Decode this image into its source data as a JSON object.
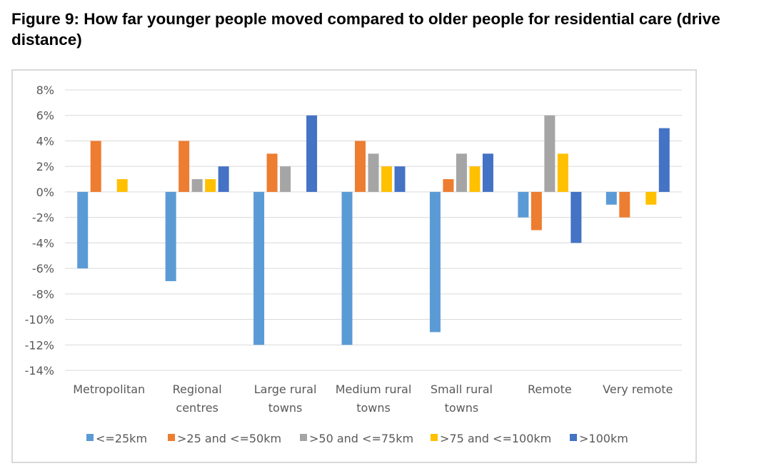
{
  "title": "Figure 9: How far younger people moved compared to older people for residential care (drive distance)",
  "chart_data": {
    "type": "bar",
    "categories": [
      [
        "Metropolitan"
      ],
      [
        "Regional",
        "centres"
      ],
      [
        "Large rural",
        "towns"
      ],
      [
        "Medium rural",
        "towns"
      ],
      [
        "Small rural",
        "towns"
      ],
      [
        "Remote"
      ],
      [
        "Very remote"
      ]
    ],
    "series": [
      {
        "name": "<=25km",
        "color": "#5b9bd5",
        "values": [
          -6,
          -7,
          -12,
          -12,
          -11,
          -2,
          -1
        ]
      },
      {
        "name": ">25 and <=50km",
        "color": "#ed7d31",
        "values": [
          4,
          4,
          3,
          4,
          1,
          -3,
          -2
        ]
      },
      {
        "name": ">50 and <=75km",
        "color": "#a5a5a5",
        "values": [
          0,
          1,
          2,
          3,
          3,
          6,
          0
        ]
      },
      {
        "name": ">75 and <=100km",
        "color": "#ffc000",
        "values": [
          1,
          1,
          0,
          2,
          2,
          3,
          -1
        ]
      },
      {
        "name": ">100km",
        "color": "#4472c4",
        "values": [
          0,
          2,
          6,
          2,
          3,
          -4,
          5
        ]
      }
    ],
    "ylim": [
      -14,
      8
    ],
    "yticks": [
      8,
      6,
      4,
      2,
      0,
      -2,
      -4,
      -6,
      -8,
      -10,
      -12,
      -14
    ],
    "ytick_labels": [
      "8%",
      "6%",
      "4%",
      "2%",
      "0%",
      "-2%",
      "-4%",
      "-6%",
      "-8%",
      "-10%",
      "-12%",
      "-14%"
    ],
    "grid": true,
    "legend_position": "bottom",
    "xlabel": "",
    "ylabel": ""
  }
}
